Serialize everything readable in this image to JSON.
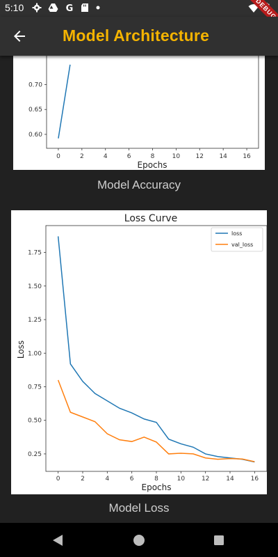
{
  "status": {
    "time": "5:10",
    "left_icons": [
      "gear-icon",
      "drive-icon",
      "google-icon",
      "sd-card-icon",
      "dot-icon"
    ],
    "right_icons": [
      "wifi-icon",
      "battery-icon"
    ],
    "debug_label": "DEBUG"
  },
  "app_bar": {
    "title": "Model Architecture",
    "back_icon": "arrow-left-icon",
    "title_color": "#f5b400"
  },
  "accuracy": {
    "caption": "Model Accuracy"
  },
  "loss": {
    "caption": "Model Loss"
  },
  "nav": {
    "back_icon": "triangle-back-icon",
    "home_icon": "circle-home-icon",
    "recents_icon": "square-recents-icon"
  },
  "chart_data": [
    {
      "type": "line",
      "title": "",
      "xlabel": "Epochs",
      "ylabel": "",
      "x_ticks": [
        0,
        2,
        4,
        6,
        8,
        10,
        12,
        14,
        16
      ],
      "y_ticks": [
        0.6,
        0.65,
        0.7
      ],
      "y_tick_labels": [
        "0.60",
        "0.65",
        "0.70"
      ],
      "visible_ylim": [
        0.58,
        0.72
      ],
      "series": [
        {
          "color": "#1f77b4",
          "x": [
            0,
            1
          ],
          "values": [
            0.592,
            0.74
          ]
        }
      ]
    },
    {
      "type": "line",
      "title": "Loss Curve",
      "xlabel": "Epochs",
      "ylabel": "Loss",
      "xlim": [
        -1,
        17
      ],
      "ylim": [
        0.12,
        1.95
      ],
      "x_ticks": [
        0,
        2,
        4,
        6,
        8,
        10,
        12,
        14,
        16
      ],
      "y_ticks": [
        0.25,
        0.5,
        0.75,
        1.0,
        1.25,
        1.5,
        1.75
      ],
      "y_tick_labels": [
        "0.25",
        "0.50",
        "0.75",
        "1.00",
        "1.25",
        "1.50",
        "1.75"
      ],
      "legend_position": "top-right",
      "x": [
        0,
        1,
        2,
        3,
        4,
        5,
        6,
        7,
        8,
        9,
        10,
        11,
        12,
        13,
        14,
        15,
        16
      ],
      "series": [
        {
          "name": "loss",
          "color": "#1f77b4",
          "values": [
            1.87,
            0.92,
            0.79,
            0.7,
            0.645,
            0.59,
            0.555,
            0.51,
            0.485,
            0.36,
            0.325,
            0.3,
            0.25,
            0.23,
            0.22,
            0.21,
            0.19
          ]
        },
        {
          "name": "val_loss",
          "color": "#ff7f0e",
          "values": [
            0.8,
            0.56,
            0.525,
            0.49,
            0.4,
            0.355,
            0.342,
            0.375,
            0.338,
            0.25,
            0.255,
            0.25,
            0.22,
            0.21,
            0.215,
            0.212,
            0.192
          ]
        }
      ]
    }
  ]
}
